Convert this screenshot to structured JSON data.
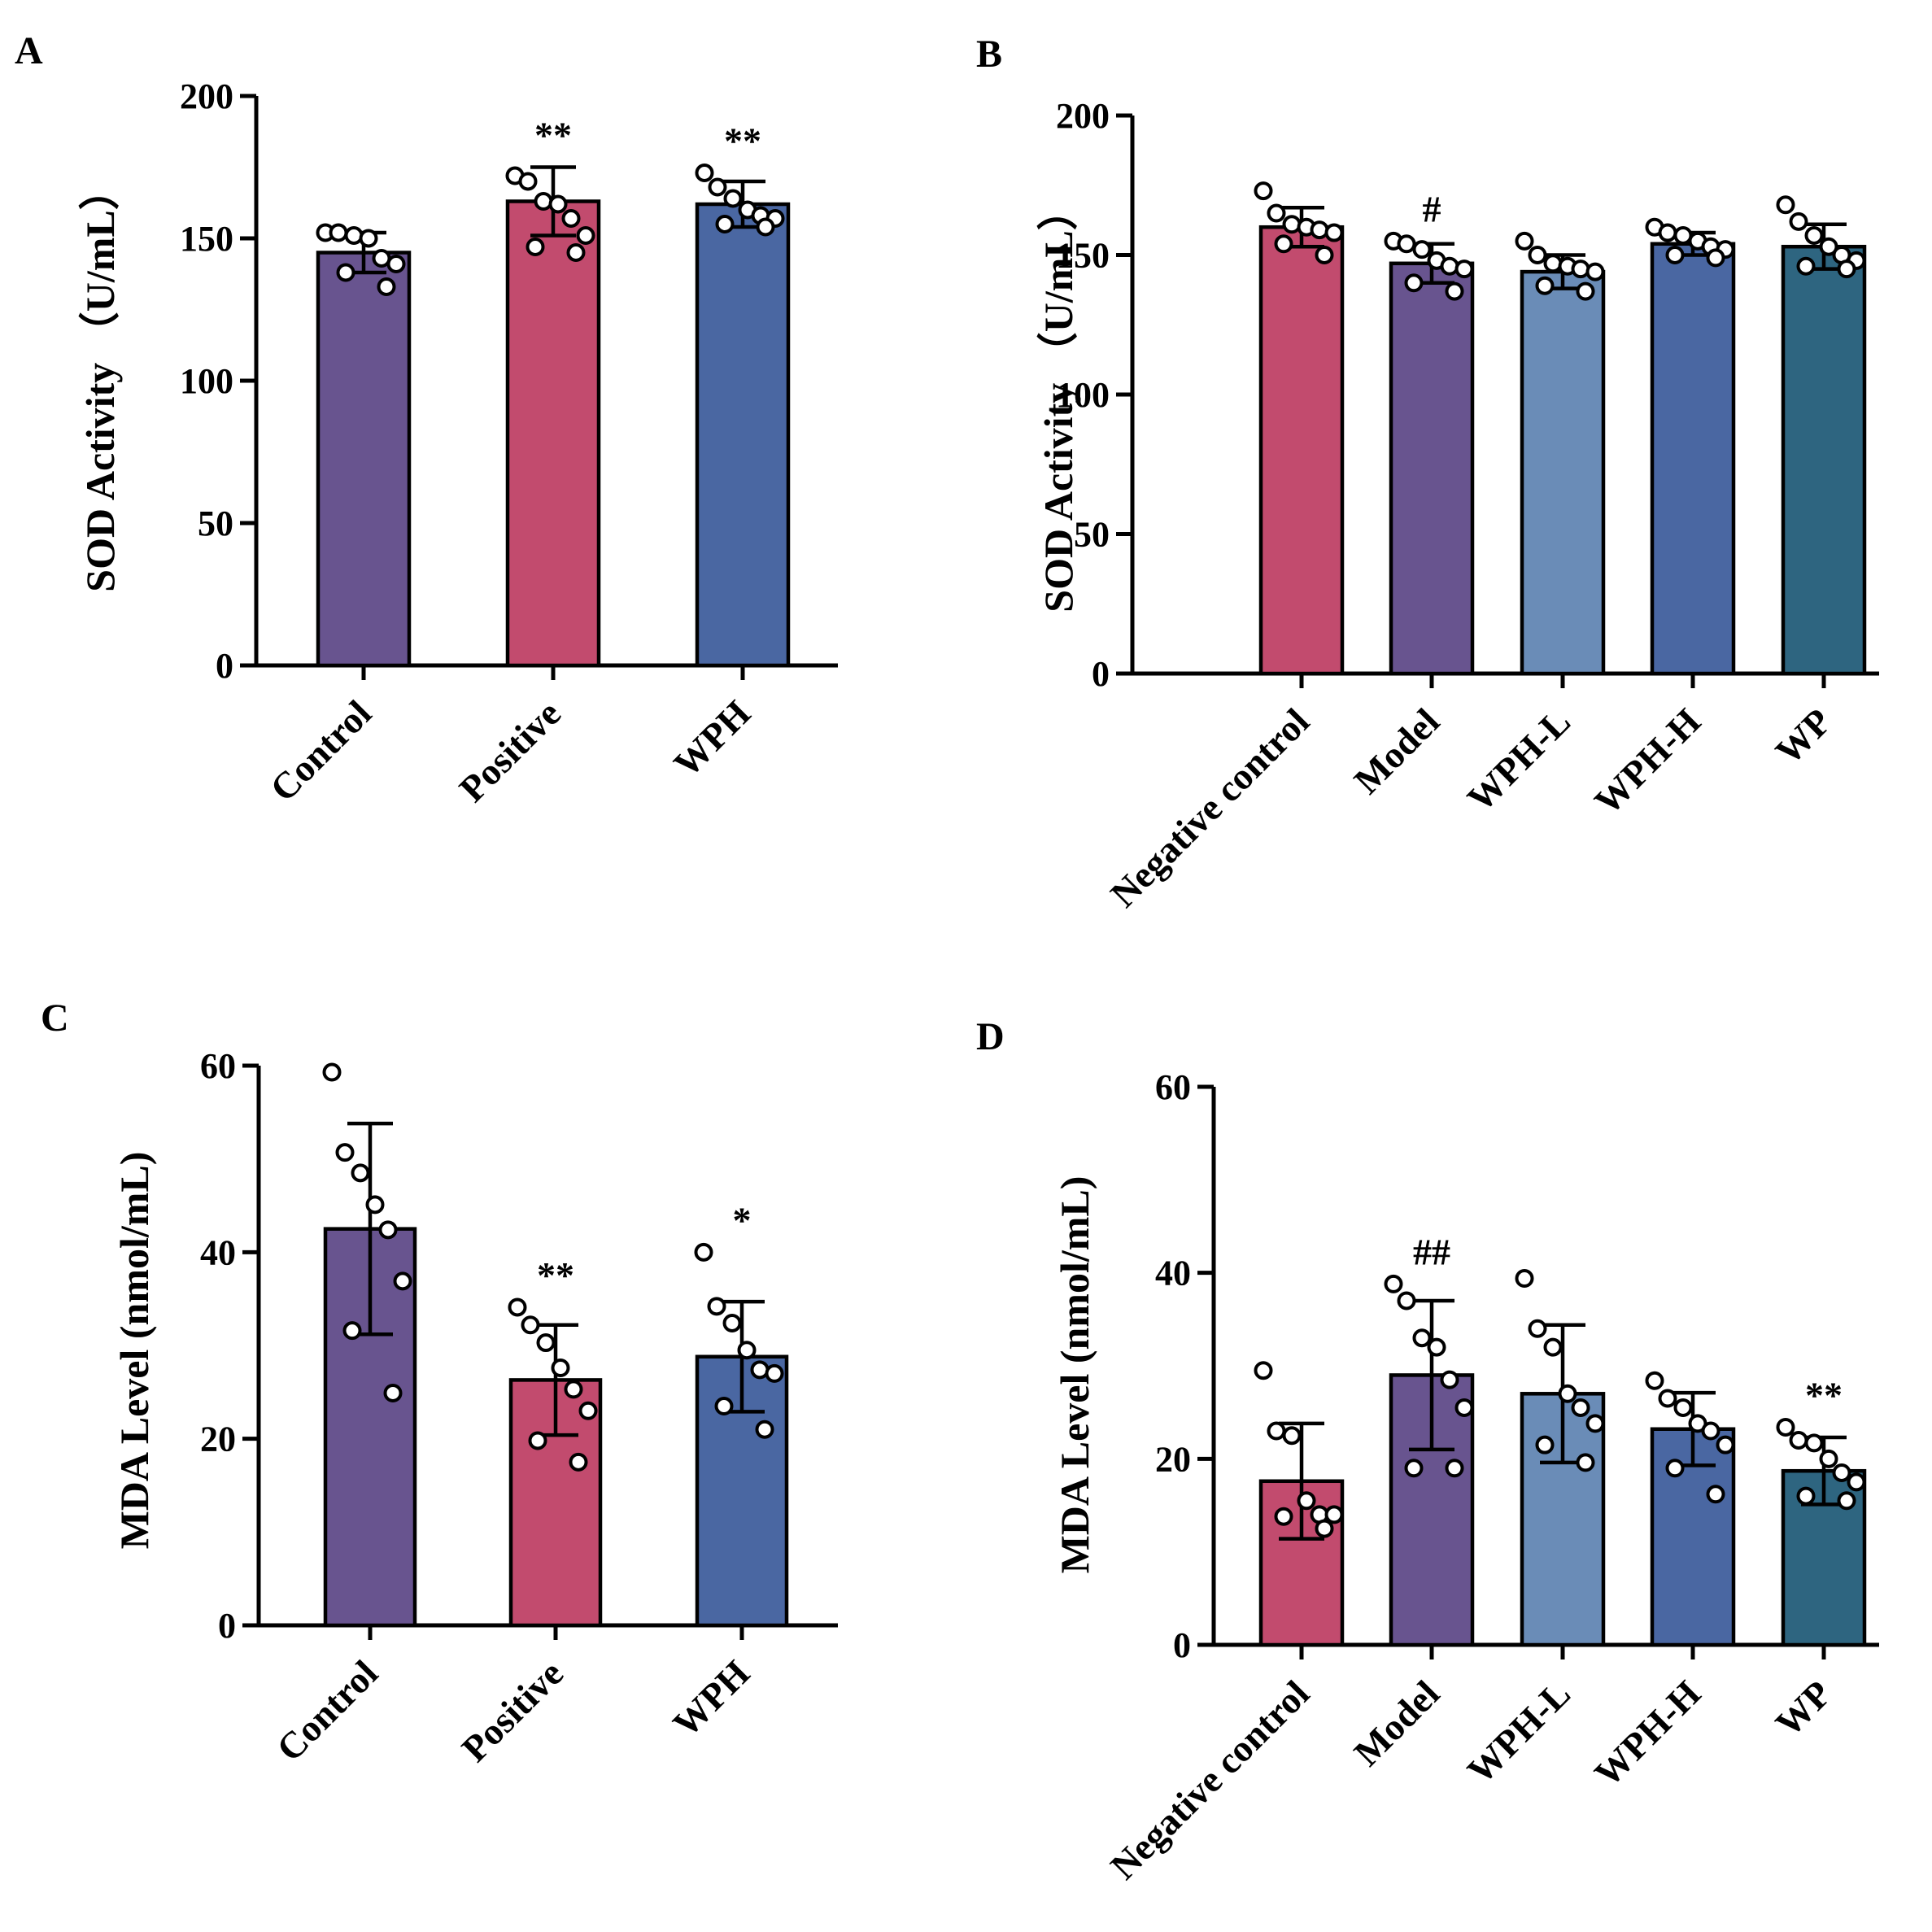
{
  "colors": {
    "control": "#68548f",
    "positive": "#c24b6e",
    "wph": "#4a67a2",
    "negative_control": "#c24b6e",
    "model": "#68548f",
    "wph_l": "#6a8cb7",
    "wph_h": "#4a67a2",
    "wp": "#2e6580"
  },
  "chart_data": [
    {
      "panel": "A",
      "type": "bar",
      "ylabel": "SOD Activity （U/mL）",
      "ylim": [
        0,
        200
      ],
      "yticks": [
        0,
        50,
        100,
        150,
        200
      ],
      "categories": [
        "Control",
        "Positive",
        "WPH"
      ],
      "color_keys": [
        "control",
        "positive",
        "wph"
      ],
      "values": [
        145,
        163,
        162
      ],
      "sd": [
        7,
        12,
        8
      ],
      "significance": [
        "",
        "**",
        "**"
      ],
      "points": [
        [
          152,
          152,
          151,
          150,
          143,
          141,
          138,
          133
        ],
        [
          172,
          170,
          163,
          162,
          157,
          151,
          147,
          145
        ],
        [
          173,
          168,
          164,
          160,
          158,
          157,
          155,
          154
        ]
      ]
    },
    {
      "panel": "B",
      "type": "bar",
      "ylabel": "SOD Activity （U/mL）",
      "ylim": [
        0,
        200
      ],
      "yticks": [
        0,
        50,
        100,
        150,
        200
      ],
      "categories": [
        "Negative control",
        "Model",
        "WPH-L",
        "WPH-H",
        "WP"
      ],
      "color_keys": [
        "negative_control",
        "model",
        "wph_l",
        "wph_h",
        "wp"
      ],
      "values": [
        160,
        147,
        144,
        154,
        153
      ],
      "sd": [
        7,
        7,
        6,
        4,
        8
      ],
      "significance": [
        "",
        "#",
        "",
        "",
        ""
      ],
      "points": [
        [
          173,
          165,
          161,
          160,
          159,
          158,
          154,
          150
        ],
        [
          155,
          154,
          152,
          148,
          146,
          145,
          140,
          137
        ],
        [
          155,
          150,
          147,
          146,
          145,
          144,
          139,
          137
        ],
        [
          160,
          158,
          157,
          155,
          153,
          152,
          150,
          149
        ],
        [
          168,
          162,
          157,
          153,
          150,
          148,
          146,
          145
        ]
      ]
    },
    {
      "panel": "C",
      "type": "bar",
      "ylabel": "MDA Level (nmol/mL)",
      "ylim": [
        0,
        60
      ],
      "yticks": [
        0,
        20,
        40,
        60
      ],
      "categories": [
        "Control",
        "Positive",
        "WPH"
      ],
      "color_keys": [
        "control",
        "positive",
        "wph"
      ],
      "values": [
        42.5,
        26.3,
        28.8
      ],
      "sd": [
        11.3,
        5.9,
        5.9
      ],
      "significance": [
        "",
        "**",
        "*"
      ],
      "points": [
        [
          59.3,
          50.7,
          48.5,
          45.1,
          42.4,
          36.9,
          31.6,
          24.9
        ],
        [
          34.1,
          32.2,
          30.3,
          27.6,
          25.3,
          23.0,
          19.8,
          17.5
        ],
        [
          40.0,
          34.2,
          32.4,
          29.5,
          27.4,
          27.0,
          23.5,
          21.0
        ]
      ]
    },
    {
      "panel": "D",
      "type": "bar",
      "ylabel": "MDA Level (nmol/mL)",
      "ylim": [
        0,
        60
      ],
      "yticks": [
        0,
        20,
        40,
        60
      ],
      "categories": [
        "Negative control",
        "Model",
        "WPH-L",
        "WPH-H",
        "WP"
      ],
      "color_keys": [
        "negative_control",
        "model",
        "wph_l",
        "wph_h",
        "wp"
      ],
      "values": [
        17.6,
        29.0,
        27.0,
        23.2,
        18.7
      ],
      "sd": [
        6.2,
        8.0,
        7.4,
        3.9,
        3.6
      ],
      "significance": [
        "",
        "##",
        "",
        "",
        "**"
      ],
      "points": [
        [
          29.5,
          23.0,
          22.5,
          15.5,
          14.0,
          14.0,
          13.8,
          12.5
        ],
        [
          38.8,
          37.0,
          33.0,
          32.0,
          28.5,
          25.5,
          19.0,
          19.0
        ],
        [
          39.4,
          34.0,
          32.0,
          27.0,
          25.5,
          23.8,
          21.5,
          19.6
        ],
        [
          28.4,
          26.5,
          25.5,
          23.8,
          23.0,
          21.5,
          19.0,
          16.2
        ],
        [
          23.4,
          22.0,
          21.7,
          20.0,
          18.5,
          17.5,
          16.0,
          15.5
        ]
      ]
    }
  ]
}
